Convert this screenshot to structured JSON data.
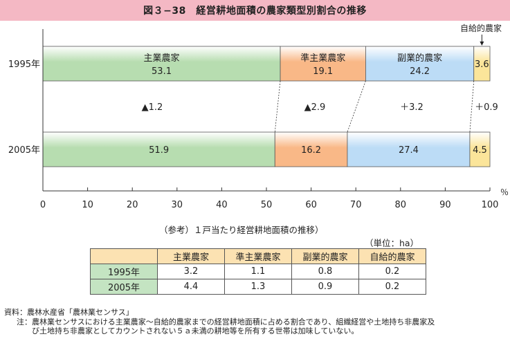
{
  "title": "図３−38　経営耕地面積の農家類型別割合の推移",
  "chart_data": {
    "type": "bar",
    "orientation": "horizontal-stacked-100",
    "categories": [
      "1995年",
      "2005年"
    ],
    "series": [
      {
        "name": "主業農家",
        "values": [
          53.1,
          51.9
        ],
        "color": "#b7ddb0"
      },
      {
        "name": "準主業農家",
        "values": [
          19.1,
          16.2
        ],
        "color": "#f9b887"
      },
      {
        "name": "副業的農家",
        "values": [
          24.2,
          27.4
        ],
        "color": "#bcdcf6"
      },
      {
        "name": "自給的農家",
        "values": [
          3.6,
          4.5
        ],
        "color": "#fbe59a"
      }
    ],
    "changes": [
      "▲1.2",
      "▲2.9",
      "＋3.2",
      "＋0.9"
    ],
    "xlim": [
      0,
      100
    ],
    "xticks": [
      "0",
      "10",
      "20",
      "30",
      "40",
      "50",
      "60",
      "70",
      "80",
      "90",
      "100"
    ],
    "xunit": "％",
    "callout_label": "自給的農家"
  },
  "reference": {
    "title": "（参考）１戸当たり経営耕地面積の推移）",
    "unit": "（単位：ha）",
    "columns": [
      "主業農家",
      "準主業農家",
      "副業的農家",
      "自給的農家"
    ],
    "rows": [
      {
        "label": "1995年",
        "values": [
          "3.2",
          "1.1",
          "0.8",
          "0.2"
        ]
      },
      {
        "label": "2005年",
        "values": [
          "4.4",
          "1.3",
          "0.9",
          "0.2"
        ]
      }
    ]
  },
  "notes": {
    "source": "資料：農林水産省「農林業センサス」",
    "note1": "注：農林業センサスにおける主業農家〜自給的農家までの経営耕地面積に占める割合であり、組織経営や土地持ち非農家及",
    "note2": "び土地持ち非農家としてカウントされない５ａ未満の耕地等を所有する世帯は加味していない。"
  }
}
